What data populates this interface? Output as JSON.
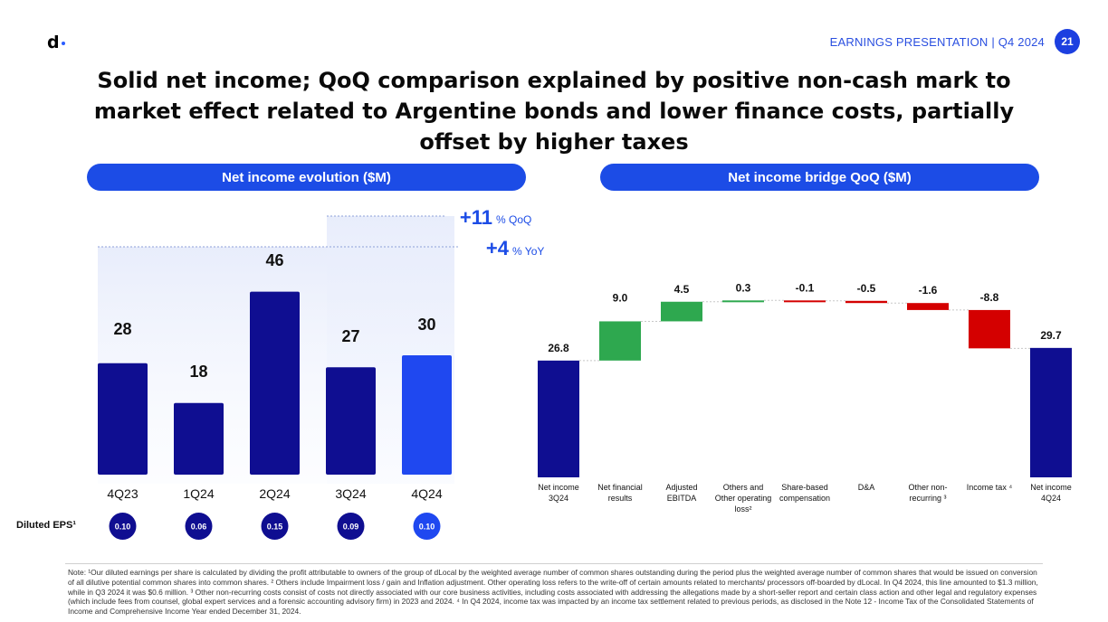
{
  "logo": {
    "text": "d"
  },
  "header": {
    "title": "EARNINGS PRESENTATION | Q4 2024",
    "page_number": "21"
  },
  "slide_title": "Solid net income; QoQ comparison explained by positive non-cash mark to market effect related to Argentine bonds and lower finance costs, partially offset by higher taxes",
  "left_panel": {
    "title": "Net income evolution ($M)",
    "qoq_value": "+11",
    "qoq_unit": "% QoQ",
    "yoy_value": "+4",
    "yoy_unit": "% YoY",
    "eps_label": "Diluted EPS¹"
  },
  "right_panel": {
    "title": "Net income bridge QoQ ($M)"
  },
  "colors": {
    "accent": "#1c4ce6",
    "navy_bar": "#0f0e91",
    "highlight_bar": "#1f48f0",
    "increase": "#2ea84f",
    "decrease": "#d40000"
  },
  "chart_data": [
    {
      "type": "bar",
      "title": "Net income evolution ($M)",
      "categories": [
        "4Q23",
        "1Q24",
        "2Q24",
        "3Q24",
        "4Q24"
      ],
      "values": [
        28,
        18,
        46,
        27,
        30
      ],
      "labels": [
        "28",
        "18",
        "46",
        "27",
        "30"
      ],
      "highlight_index": 4,
      "eps": [
        "0.10",
        "0.06",
        "0.15",
        "0.09",
        "0.10"
      ],
      "annotations": [
        "+11% QoQ",
        "+4% YoY"
      ]
    },
    {
      "type": "bar",
      "subtype": "waterfall",
      "title": "Net income bridge QoQ ($M)",
      "categories": [
        [
          "Net income",
          "3Q24"
        ],
        [
          "Net financial",
          "results"
        ],
        [
          "Adjusted",
          "EBITDA"
        ],
        [
          "Others and",
          "Other operating",
          "loss²"
        ],
        [
          "Share-based",
          "compensation"
        ],
        [
          "D&A"
        ],
        [
          "Other non-",
          "recurring ³"
        ],
        [
          "Income tax ⁴"
        ],
        [
          "Net income",
          "4Q24"
        ]
      ],
      "values": [
        26.8,
        9.0,
        4.5,
        0.3,
        -0.1,
        -0.5,
        -1.6,
        -8.8,
        29.7
      ],
      "labels": [
        "26.8",
        "9.0",
        "4.5",
        "0.3",
        "-0.1",
        "-0.5",
        "-1.6",
        "-8.8",
        "29.7"
      ],
      "kinds": [
        "total",
        "delta",
        "delta",
        "delta",
        "delta",
        "delta",
        "delta",
        "delta",
        "total"
      ]
    }
  ],
  "footnote": "Note:  ¹Our diluted earnings per share is calculated by dividing the profit attributable to owners of the group of dLocal by the weighted average number of common shares outstanding during the period plus the weighted average number of common shares that would be issued on conversion of all dilutive potential common shares into common shares. ² Others include Impairment loss / gain and Inflation adjustment. Other operating loss refers to the write-off of certain amounts related to merchants/ processors off-boarded by dLocal. In Q4 2024, this line amounted to $1.3 million, while in Q3 2024 it was $0.6 million. ³ Other non-recurring costs consist of costs not directly associated with our core business activities, including costs associated with addressing the allegations made by a short-seller report and certain class action and other legal and regulatory expenses (which include fees from counsel, global expert services and a forensic accounting advisory firm) in 2023 and 2024. ⁴ In Q4 2024, income tax was impacted by an income tax settlement related to previous periods, as disclosed in the Note 12 - Income Tax of the Consolidated Statements of Income and Comprehensive Income Year ended December 31, 2024."
}
